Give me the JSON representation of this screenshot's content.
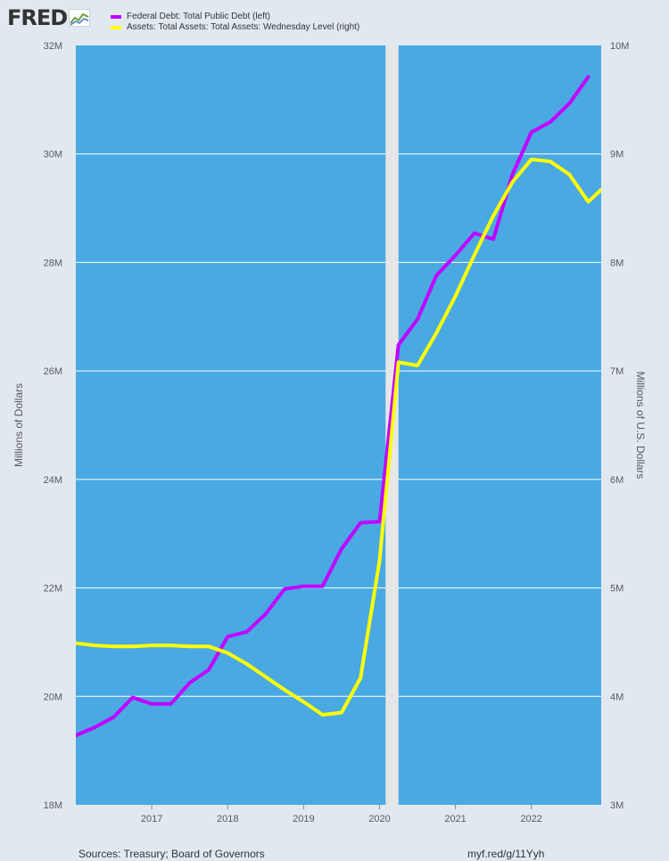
{
  "logo": {
    "text": "FRED",
    "icon": "chart-line-icon"
  },
  "legend": [
    {
      "label": "Federal Debt: Total Public Debt (left)",
      "color": "#c000ff"
    },
    {
      "label": "Assets: Total Assets: Total Assets: Wednesday Level (right)",
      "color": "#ffff00"
    }
  ],
  "footer": {
    "sources": "Sources: Treasury; Board of Governors",
    "link": "myf.red/g/11Yyh"
  },
  "chart_data": {
    "type": "line",
    "background_color": "#4aa9e2",
    "recession_shading": {
      "from": 2020.08,
      "to": 2020.25,
      "color": "#e6e6e6"
    },
    "xlim": [
      2016.0,
      2022.92
    ],
    "x_ticks": [
      2017,
      2018,
      2019,
      2020,
      2021,
      2022
    ],
    "y_left": {
      "label": "Millions of Dollars",
      "range": [
        18,
        32
      ],
      "ticks": [
        "18M",
        "20M",
        "22M",
        "24M",
        "26M",
        "28M",
        "30M",
        "32M"
      ]
    },
    "y_right": {
      "label": "Millions of U.S. Dollars",
      "range": [
        3,
        10
      ],
      "ticks": [
        "3M",
        "4M",
        "5M",
        "6M",
        "7M",
        "8M",
        "9M",
        "10M"
      ]
    },
    "grid": true,
    "series": [
      {
        "name": "Federal Debt: Total Public Debt (left)",
        "axis": "left",
        "color": "#c000ff",
        "x": [
          2016.0,
          2016.25,
          2016.5,
          2016.75,
          2017.0,
          2017.25,
          2017.5,
          2017.75,
          2018.0,
          2018.25,
          2018.5,
          2018.75,
          2019.0,
          2019.25,
          2019.5,
          2019.75,
          2020.0,
          2020.25,
          2020.5,
          2020.75,
          2021.0,
          2021.25,
          2021.5,
          2021.75,
          2022.0,
          2022.25,
          2022.5,
          2022.75
        ],
        "values": [
          19.28,
          19.43,
          19.62,
          19.98,
          19.86,
          19.86,
          20.25,
          20.49,
          21.1,
          21.19,
          21.52,
          21.98,
          22.03,
          22.03,
          22.72,
          23.2,
          23.22,
          26.48,
          26.95,
          27.76,
          28.13,
          28.54,
          28.43,
          29.62,
          30.4,
          30.59,
          30.93,
          31.42
        ]
      },
      {
        "name": "Assets: Total Assets: Total Assets: Wednesday Level (right)",
        "axis": "right",
        "color": "#ffff00",
        "x": [
          2016.0,
          2016.25,
          2016.5,
          2016.75,
          2017.0,
          2017.25,
          2017.5,
          2017.75,
          2018.0,
          2018.25,
          2018.5,
          2018.75,
          2019.0,
          2019.25,
          2019.5,
          2019.75,
          2020.0,
          2020.25,
          2020.5,
          2020.75,
          2021.0,
          2021.25,
          2021.5,
          2021.75,
          2022.0,
          2022.25,
          2022.5,
          2022.75,
          2022.92
        ],
        "values": [
          4.49,
          4.47,
          4.46,
          4.46,
          4.47,
          4.47,
          4.46,
          4.46,
          4.4,
          4.3,
          4.18,
          4.06,
          3.95,
          3.83,
          3.85,
          4.17,
          5.25,
          7.08,
          7.05,
          7.35,
          7.69,
          8.07,
          8.43,
          8.74,
          8.95,
          8.93,
          8.81,
          8.56,
          8.67
        ]
      }
    ]
  }
}
